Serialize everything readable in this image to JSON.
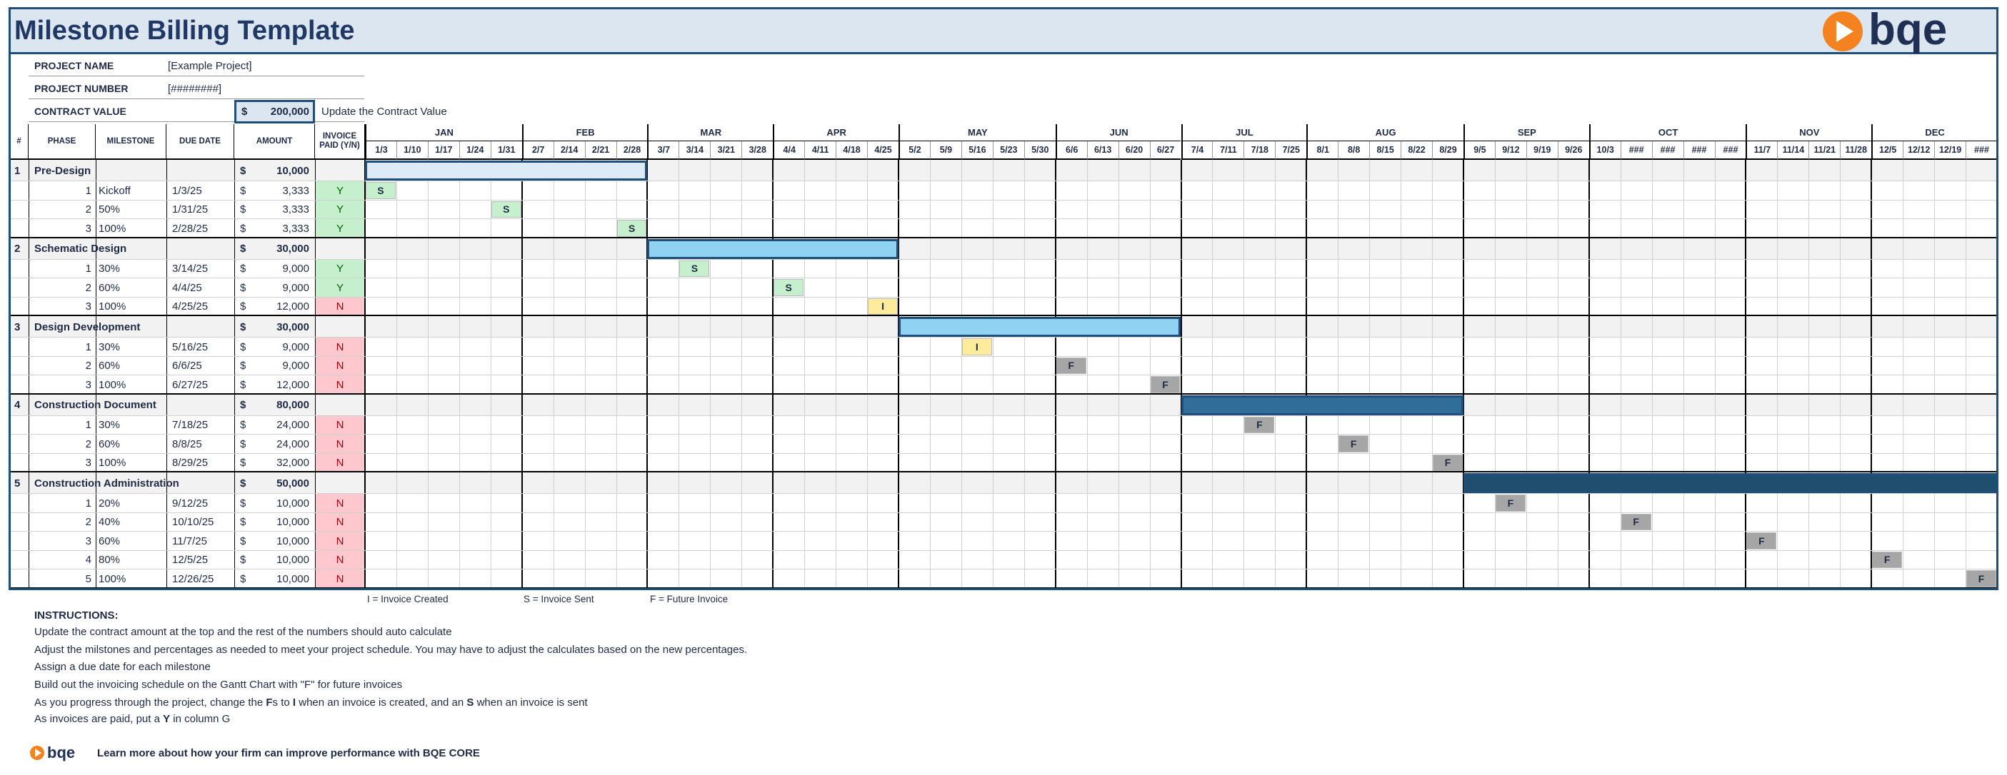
{
  "header": {
    "title": "Milestone Billing Template",
    "logo": "bqe"
  },
  "currency": "$",
  "project": {
    "name_label": "PROJECT NAME",
    "name": "[Example Project]",
    "number_label": "PROJECT NUMBER",
    "number": "[########]",
    "value_label": "CONTRACT VALUE",
    "value": "200,000",
    "value_note": "Update the Contract Value"
  },
  "columns": [
    "#",
    "PHASE",
    "MILESTONE",
    "DUE DATE",
    "AMOUNT",
    "INVOICE PAID (Y/N)"
  ],
  "months": [
    {
      "name": "JAN",
      "weeks": [
        "1/3",
        "1/10",
        "1/17",
        "1/24",
        "1/31"
      ]
    },
    {
      "name": "FEB",
      "weeks": [
        "2/7",
        "2/14",
        "2/21",
        "2/28"
      ]
    },
    {
      "name": "MAR",
      "weeks": [
        "3/7",
        "3/14",
        "3/21",
        "3/28"
      ]
    },
    {
      "name": "APR",
      "weeks": [
        "4/4",
        "4/11",
        "4/18",
        "4/25"
      ]
    },
    {
      "name": "MAY",
      "weeks": [
        "5/2",
        "5/9",
        "5/16",
        "5/23",
        "5/30"
      ]
    },
    {
      "name": "JUN",
      "weeks": [
        "6/6",
        "6/13",
        "6/20",
        "6/27"
      ]
    },
    {
      "name": "JUL",
      "weeks": [
        "7/4",
        "7/11",
        "7/18",
        "7/25"
      ]
    },
    {
      "name": "AUG",
      "weeks": [
        "8/1",
        "8/8",
        "8/15",
        "8/22",
        "8/29"
      ]
    },
    {
      "name": "SEP",
      "weeks": [
        "9/5",
        "9/12",
        "9/19",
        "9/26"
      ]
    },
    {
      "name": "OCT",
      "weeks": [
        "10/3",
        "###",
        "###",
        "###",
        "###"
      ]
    },
    {
      "name": "NOV",
      "weeks": [
        "11/7",
        "11/14",
        "11/21",
        "11/28"
      ]
    },
    {
      "name": "DEC",
      "weeks": [
        "12/5",
        "12/12",
        "12/19",
        "###"
      ]
    }
  ],
  "phases": [
    {
      "number": "1",
      "name": "Pre-Design",
      "amount": "10,000",
      "bar_start": 0,
      "bar_end": 8,
      "bar_color": "#ddebf7",
      "milestones": [
        {
          "number": "1",
          "name": "Kickoff",
          "due": "1/3/25",
          "amount": "3,333",
          "paid": "Y",
          "paid_fill": "#c6efce",
          "marker": "S",
          "marker_week": 0,
          "marker_fill": "#c6efce"
        },
        {
          "number": "2",
          "name": "50%",
          "due": "1/31/25",
          "amount": "3,333",
          "paid": "Y",
          "paid_fill": "#c6efce",
          "marker": "S",
          "marker_week": 4,
          "marker_fill": "#c6efce"
        },
        {
          "number": "3",
          "name": "100%",
          "due": "2/28/25",
          "amount": "3,333",
          "paid": "Y",
          "paid_fill": "#c6efce",
          "marker": "S",
          "marker_week": 8,
          "marker_fill": "#c6efce"
        }
      ]
    },
    {
      "number": "2",
      "name": "Schematic Design",
      "amount": "30,000",
      "bar_start": 9,
      "bar_end": 16,
      "bar_color": "#8fd2f2",
      "milestones": [
        {
          "number": "1",
          "name": "30%",
          "due": "3/14/25",
          "amount": "9,000",
          "paid": "Y",
          "paid_fill": "#c6efce",
          "marker": "S",
          "marker_week": 10,
          "marker_fill": "#c6efce"
        },
        {
          "number": "2",
          "name": "60%",
          "due": "4/4/25",
          "amount": "9,000",
          "paid": "Y",
          "paid_fill": "#c6efce",
          "marker": "S",
          "marker_week": 13,
          "marker_fill": "#c6efce"
        },
        {
          "number": "3",
          "name": "100%",
          "due": "4/25/25",
          "amount": "12,000",
          "paid": "N",
          "paid_fill": "#ffc7ce",
          "marker": "I",
          "marker_week": 16,
          "marker_fill": "#ffeb9c"
        }
      ]
    },
    {
      "number": "3",
      "name": "Design Development",
      "amount": "30,000",
      "bar_start": 17,
      "bar_end": 25,
      "bar_color": "#8fd2f2",
      "milestones": [
        {
          "number": "1",
          "name": "30%",
          "due": "5/16/25",
          "amount": "9,000",
          "paid": "N",
          "paid_fill": "#ffc7ce",
          "marker": "I",
          "marker_week": 19,
          "marker_fill": "#ffeb9c"
        },
        {
          "number": "2",
          "name": "60%",
          "due": "6/6/25",
          "amount": "9,000",
          "paid": "N",
          "paid_fill": "#ffc7ce",
          "marker": "F",
          "marker_week": 22,
          "marker_fill": "#a6a6a6"
        },
        {
          "number": "3",
          "name": "100%",
          "due": "6/27/25",
          "amount": "12,000",
          "paid": "N",
          "paid_fill": "#ffc7ce",
          "marker": "F",
          "marker_week": 25,
          "marker_fill": "#a6a6a6"
        }
      ]
    },
    {
      "number": "4",
      "name": "Construction Document",
      "amount": "80,000",
      "bar_start": 26,
      "bar_end": 34,
      "bar_color": "#306e99",
      "milestones": [
        {
          "number": "1",
          "name": "30%",
          "due": "7/18/25",
          "amount": "24,000",
          "paid": "N",
          "paid_fill": "#ffc7ce",
          "marker": "F",
          "marker_week": 28,
          "marker_fill": "#a6a6a6"
        },
        {
          "number": "2",
          "name": "60%",
          "due": "8/8/25",
          "amount": "24,000",
          "paid": "N",
          "paid_fill": "#ffc7ce",
          "marker": "F",
          "marker_week": 31,
          "marker_fill": "#a6a6a6"
        },
        {
          "number": "3",
          "name": "100%",
          "due": "8/29/25",
          "amount": "32,000",
          "paid": "N",
          "paid_fill": "#ffc7ce",
          "marker": "F",
          "marker_week": 34,
          "marker_fill": "#a6a6a6"
        }
      ]
    },
    {
      "number": "5",
      "name": "Construction Administration",
      "amount": "50,000",
      "bar_start": 35,
      "bar_end": 51,
      "bar_color": "#1f4e6e",
      "milestones": [
        {
          "number": "1",
          "name": "20%",
          "due": "9/12/25",
          "amount": "10,000",
          "paid": "N",
          "paid_fill": "#ffc7ce",
          "marker": "F",
          "marker_week": 36,
          "marker_fill": "#a6a6a6"
        },
        {
          "number": "2",
          "name": "40%",
          "due": "10/10/25",
          "amount": "10,000",
          "paid": "N",
          "paid_fill": "#ffc7ce",
          "marker": "F",
          "marker_week": 40,
          "marker_fill": "#a6a6a6"
        },
        {
          "number": "3",
          "name": "60%",
          "due": "11/7/25",
          "amount": "10,000",
          "paid": "N",
          "paid_fill": "#ffc7ce",
          "marker": "F",
          "marker_week": 44,
          "marker_fill": "#a6a6a6"
        },
        {
          "number": "4",
          "name": "80%",
          "due": "12/5/25",
          "amount": "10,000",
          "paid": "N",
          "paid_fill": "#ffc7ce",
          "marker": "F",
          "marker_week": 48,
          "marker_fill": "#a6a6a6"
        },
        {
          "number": "5",
          "name": "100%",
          "due": "12/26/25",
          "amount": "10,000",
          "paid": "N",
          "paid_fill": "#ffc7ce",
          "marker": "F",
          "marker_week": 51,
          "marker_fill": "#a6a6a6"
        }
      ]
    }
  ],
  "legend": [
    "I = Invoice Created",
    "S = Invoice Sent",
    "F = Future Invoice"
  ],
  "instructions": {
    "title": "INSTRUCTIONS:",
    "lines": [
      [
        "Update the contract amount at the top and the rest of the numbers should auto calculate"
      ],
      [
        "Adjust the milstones and percentages as needed to meet your project schedule. You may have to adjust the calculates based on the new percentages."
      ],
      [
        "Assign a due date for each milestone"
      ],
      [
        "Build out the invoicing schedule on the Gantt Chart with \"F\" for future invoices"
      ],
      [
        "As you progress through the project, change the ",
        "F",
        "s to ",
        "I",
        " when an invoice is created, and an ",
        "S",
        " when an invoice is sent"
      ],
      [
        "As invoices are paid, put a ",
        "Y",
        " in column G"
      ]
    ]
  },
  "footer": {
    "logo": "bqe",
    "text": "Learn more about how your firm can improve performance with BQE CORE"
  }
}
